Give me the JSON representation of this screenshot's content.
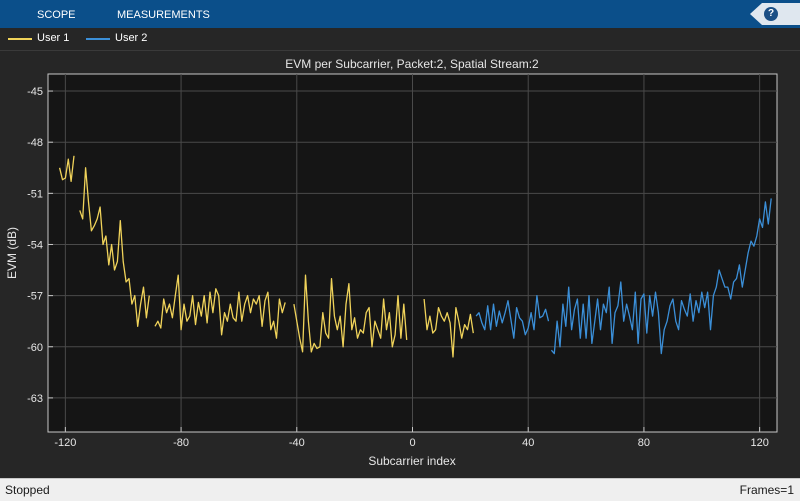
{
  "toolstrip": {
    "tabs": [
      {
        "label": "SCOPE"
      },
      {
        "label": "MEASUREMENTS"
      }
    ],
    "help_label": "?"
  },
  "colors": {
    "user1": "#f0d35a",
    "user2": "#3b8fd8",
    "toolstrip": "#0b4f8a",
    "plot_background": "#151515"
  },
  "legend": {
    "items": [
      {
        "label": "User 1",
        "color": "#f0d35a"
      },
      {
        "label": "User 2",
        "color": "#3b8fd8"
      }
    ]
  },
  "chart_data": {
    "type": "line",
    "title": "EVM per Subcarrier, Packet:2, Spatial Stream:2",
    "xlabel": "Subcarrier index",
    "ylabel": "EVM (dB)",
    "xlim": [
      -126,
      126
    ],
    "ylim": [
      -65,
      -44
    ],
    "xticks": [
      -120,
      -80,
      -40,
      0,
      40,
      80,
      120
    ],
    "yticks": [
      -45,
      -48,
      -51,
      -54,
      -57,
      -60,
      -63
    ],
    "grid": true,
    "legend_position": "top-left",
    "series": [
      {
        "name": "User 1",
        "color": "#f0d35a",
        "segments": [
          {
            "x": [
              -122,
              -121,
              -120,
              -119,
              -118,
              -117
            ],
            "y": [
              -49.5,
              -50.2,
              -50.1,
              -49.0,
              -50.3,
              -48.8
            ]
          },
          {
            "x": [
              -115,
              -114,
              -113,
              -112,
              -111,
              -110,
              -109,
              -108,
              -107,
              -106,
              -105,
              -104,
              -103,
              -102,
              -101,
              -100,
              -99,
              -98,
              -97,
              -96,
              -95,
              -94,
              -93,
              -92,
              -91
            ],
            "y": [
              -52.0,
              -52.5,
              -49.5,
              -51.5,
              -53.2,
              -52.9,
              -52.5,
              -51.8,
              -54.0,
              -53.5,
              -55.2,
              -54.0,
              -55.5,
              -55.0,
              -52.6,
              -55.0,
              -56.2,
              -56.0,
              -57.5,
              -57.0,
              -58.8,
              -57.5,
              -56.5,
              -58.3,
              -57.0
            ]
          },
          {
            "x": [
              -89,
              -88,
              -87,
              -86,
              -85,
              -84,
              -83,
              -82,
              -81,
              -80,
              -79,
              -78,
              -77,
              -76,
              -75,
              -74,
              -73,
              -72,
              -71,
              -70,
              -69,
              -68,
              -67,
              -66,
              -65,
              -64,
              -63,
              -62,
              -61,
              -60,
              -59,
              -58,
              -57,
              -56,
              -55,
              -54,
              -53,
              -52,
              -51,
              -50,
              -49,
              -48,
              -47,
              -46,
              -45,
              -44
            ],
            "y": [
              -58.8,
              -58.5,
              -58.9,
              -57.2,
              -58.0,
              -57.5,
              -58.3,
              -57.0,
              -55.8,
              -59.0,
              -57.5,
              -58.5,
              -58.2,
              -57.0,
              -58.7,
              -57.4,
              -58.2,
              -57.0,
              -58.6,
              -56.8,
              -58.0,
              -56.6,
              -57.0,
              -59.3,
              -58.0,
              -58.5,
              -57.5,
              -58.3,
              -58.5,
              -56.8,
              -58.5,
              -57.5,
              -57.0,
              -58.0,
              -57.2,
              -57.5,
              -57.0,
              -58.8,
              -57.3,
              -56.8,
              -59.0,
              -58.5,
              -59.5,
              -57.2,
              -58.0,
              -57.4
            ]
          },
          {
            "x": [
              -41,
              -40,
              -39,
              -38,
              -37,
              -36,
              -35,
              -34,
              -33,
              -32,
              -31,
              -30,
              -29,
              -28,
              -27,
              -26,
              -25,
              -24,
              -23,
              -22,
              -21,
              -20,
              -19,
              -18,
              -17,
              -16,
              -15,
              -14,
              -13,
              -12,
              -11,
              -10,
              -9,
              -8,
              -7,
              -6,
              -5,
              -4,
              -3,
              -2
            ],
            "y": [
              -57.5,
              -58.5,
              -59.5,
              -60.3,
              -55.8,
              -58.5,
              -60.3,
              -59.8,
              -60.1,
              -60.0,
              -58.0,
              -59.2,
              -59.5,
              -56.0,
              -58.2,
              -59.0,
              -58.2,
              -60.0,
              -57.5,
              -56.3,
              -59.0,
              -58.3,
              -59.5,
              -59.0,
              -59.2,
              -58.0,
              -57.7,
              -60.0,
              -58.5,
              -59.0,
              -59.5,
              -57.2,
              -59.0,
              -58.0,
              -60.0,
              -59.3,
              -57.0,
              -59.5,
              -57.5,
              -59.6
            ]
          },
          {
            "x": [
              4,
              5,
              6,
              7,
              8,
              9,
              10,
              11,
              12,
              13,
              14,
              15,
              16,
              17,
              18,
              19,
              20,
              21
            ],
            "y": [
              -57.2,
              -59.0,
              -58.2,
              -59.2,
              -59.0,
              -57.7,
              -58.2,
              -58.5,
              -58.0,
              -58.6,
              -60.6,
              -57.7,
              -58.5,
              -59.5,
              -58.7,
              -59.0,
              -58.1,
              -59.2
            ]
          }
        ]
      },
      {
        "name": "User 2",
        "color": "#3b8fd8",
        "segments": [
          {
            "x": [
              22,
              23,
              24,
              25,
              26,
              27,
              28,
              29,
              30,
              31,
              32,
              33,
              34,
              35,
              36,
              37,
              38,
              39,
              40,
              41,
              42,
              43,
              44,
              45,
              46,
              47
            ],
            "y": [
              -58.2,
              -58.0,
              -58.6,
              -59.0,
              -57.6,
              -59.0,
              -57.5,
              -58.8,
              -57.9,
              -58.6,
              -58.0,
              -57.3,
              -58.4,
              -59.5,
              -57.7,
              -58.3,
              -58.5,
              -59.3,
              -58.9,
              -58.0,
              -59.0,
              -57.0,
              -58.3,
              -58.2,
              -57.8,
              -58.5
            ]
          },
          {
            "x": [
              48,
              49,
              50,
              51,
              52,
              53,
              54,
              55,
              56,
              57,
              58,
              59,
              60,
              61,
              62,
              63,
              64,
              65,
              66,
              67,
              68,
              69,
              70,
              71,
              72,
              73,
              74,
              75,
              76,
              77,
              78,
              79,
              80,
              81,
              82,
              83,
              84,
              85,
              86,
              87,
              88,
              89,
              90,
              91,
              92,
              93,
              94,
              95,
              96,
              97,
              98,
              99,
              100,
              101,
              102,
              103,
              104,
              105,
              106,
              107,
              108,
              109,
              110,
              111,
              112,
              113,
              114,
              115,
              116,
              117,
              118,
              119,
              120,
              121,
              122,
              123,
              124
            ],
            "y": [
              -60.2,
              -60.4,
              -58.5,
              -60.0,
              -57.5,
              -58.8,
              -56.5,
              -59.0,
              -57.8,
              -57.2,
              -59.5,
              -57.5,
              -59.5,
              -57.0,
              -59.8,
              -58.5,
              -57.2,
              -59.0,
              -57.5,
              -58.0,
              -56.5,
              -59.8,
              -58.0,
              -57.6,
              -56.2,
              -58.5,
              -57.5,
              -58.2,
              -59.0,
              -56.8,
              -59.8,
              -57.2,
              -56.9,
              -59.2,
              -57.0,
              -58.2,
              -56.8,
              -58.0,
              -60.4,
              -59.0,
              -58.5,
              -57.6,
              -57.2,
              -58.5,
              -59.0,
              -57.3,
              -57.8,
              -58.2,
              -56.9,
              -58.5,
              -57.3,
              -58.0,
              -56.8,
              -57.7,
              -56.8,
              -59.0,
              -57.0,
              -56.5,
              -55.5,
              -56.0,
              -56.5,
              -56.5,
              -57.2,
              -56.2,
              -56.0,
              -55.2,
              -56.5,
              -55.5,
              -54.5,
              -53.8,
              -54.1,
              -53.5,
              -52.5,
              -53.0,
              -51.5,
              -52.8,
              -51.3
            ]
          }
        ]
      }
    ]
  },
  "status": {
    "left": "Stopped",
    "right": "Frames=1"
  }
}
